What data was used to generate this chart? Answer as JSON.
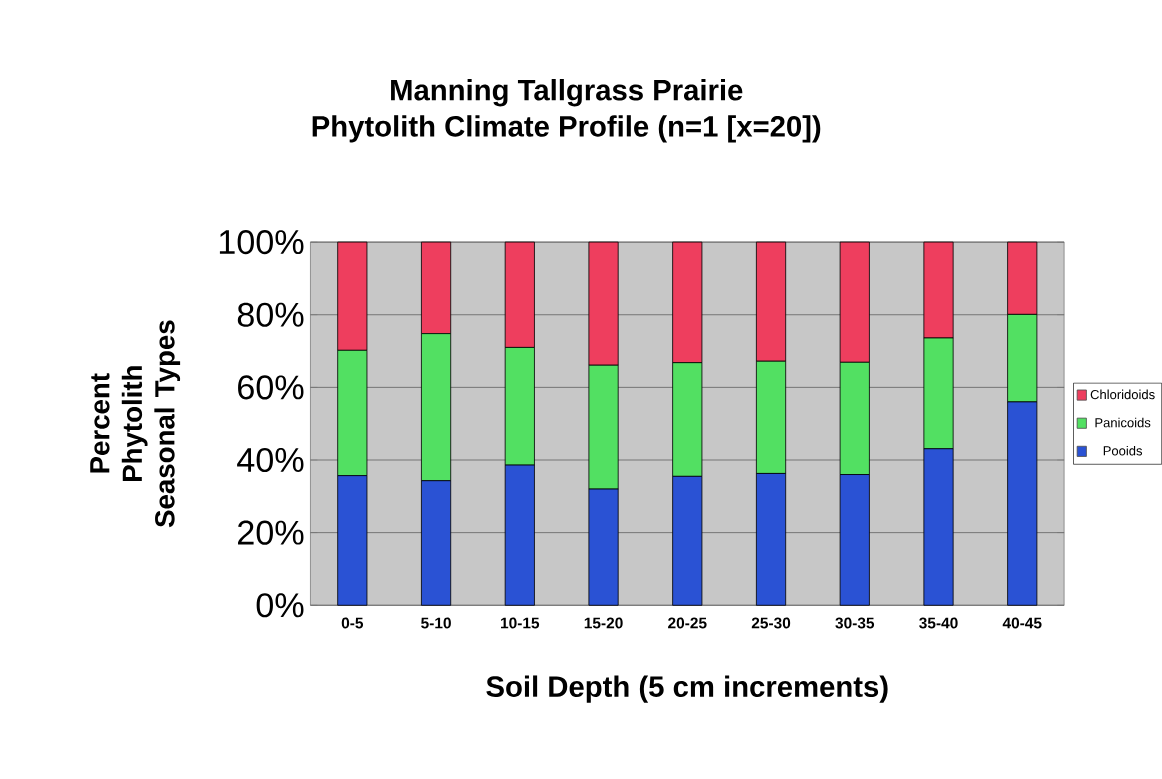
{
  "chart_data": {
    "type": "bar",
    "title": "Manning Tallgrass Prairie",
    "subtitle": "Phytolith Climate Profile (n=1 [x=20])",
    "xlabel": "Soil Depth (5 cm increments)",
    "ylabel": "Percent Phytolith Seasonal Types",
    "categories": [
      "0-5",
      "5-10",
      "10-15",
      "15-20",
      "20-25",
      "25-30",
      "30-35",
      "35-40",
      "40-45"
    ],
    "stacked": true,
    "series": [
      {
        "name": "Pooids",
        "color": "#2a52d4",
        "values": [
          35.7,
          34.3,
          38.6,
          32.0,
          35.5,
          36.3,
          36.0,
          43.1,
          56.0
        ]
      },
      {
        "name": "Panicoids",
        "color": "#52e062",
        "values": [
          34.5,
          40.5,
          32.4,
          34.1,
          31.3,
          30.9,
          30.9,
          30.5,
          24.1
        ]
      },
      {
        "name": "Chloridoids",
        "color": "#ee3e5e",
        "values": [
          29.8,
          25.2,
          29.0,
          33.9,
          33.2,
          32.8,
          33.1,
          26.4,
          19.9
        ]
      }
    ],
    "ylim": [
      0,
      100
    ],
    "yticks": [
      {
        "value": 0,
        "label": "0%"
      },
      {
        "value": 20,
        "label": "20%"
      },
      {
        "value": 40,
        "label": "40%"
      },
      {
        "value": 60,
        "label": "60%"
      },
      {
        "value": 80,
        "label": "80%"
      },
      {
        "value": 100,
        "label": "100%"
      }
    ],
    "grid": "y",
    "legend": "right"
  }
}
